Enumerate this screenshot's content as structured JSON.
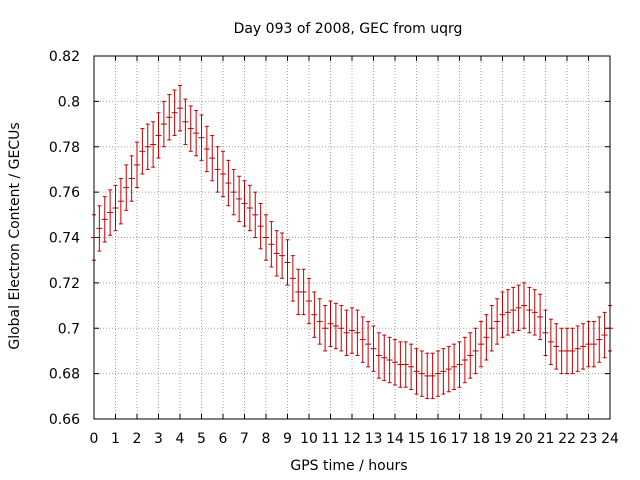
{
  "chart_data": {
    "type": "scatter",
    "title": "Day 093 of 2008, GEC from uqrg",
    "xlabel": "GPS time / hours",
    "ylabel": "Global Electron Content / GECUs",
    "xlim": [
      0,
      24
    ],
    "ylim": [
      0.66,
      0.82
    ],
    "xticks": [
      0,
      1,
      2,
      3,
      4,
      5,
      6,
      7,
      8,
      9,
      10,
      11,
      12,
      13,
      14,
      15,
      16,
      17,
      18,
      19,
      20,
      21,
      22,
      23,
      24
    ],
    "xtick_labels": [
      "0",
      "1",
      "2",
      "3",
      "4",
      "5",
      "6",
      "7",
      "8",
      "9",
      "10",
      "11",
      "12",
      "13",
      "14",
      "15",
      "16",
      "17",
      "18",
      "19",
      "20",
      "21",
      "22",
      "23",
      "24"
    ],
    "yticks": [
      0.66,
      0.68,
      0.7,
      0.72,
      0.74,
      0.76,
      0.78,
      0.8,
      0.82
    ],
    "ytick_labels": [
      "0.66",
      "0.68",
      "0.7",
      "0.72",
      "0.74",
      "0.76",
      "0.78",
      "0.8",
      "0.82"
    ],
    "grid": true,
    "errorbar": 0.01,
    "series": [
      {
        "name": "GEC",
        "color": "#c00000",
        "x": [
          0,
          0.25,
          0.5,
          0.75,
          1,
          1.25,
          1.5,
          1.75,
          2,
          2.25,
          2.5,
          2.75,
          3,
          3.25,
          3.5,
          3.75,
          4,
          4.25,
          4.5,
          4.75,
          5,
          5.25,
          5.5,
          5.75,
          6,
          6.25,
          6.5,
          6.75,
          7,
          7.25,
          7.5,
          7.75,
          8,
          8.25,
          8.5,
          8.75,
          9,
          9.25,
          9.5,
          9.75,
          10,
          10.25,
          10.5,
          10.75,
          11,
          11.25,
          11.5,
          11.75,
          12,
          12.25,
          12.5,
          12.75,
          13,
          13.25,
          13.5,
          13.75,
          14,
          14.25,
          14.5,
          14.75,
          15,
          15.25,
          15.5,
          15.75,
          16,
          16.25,
          16.5,
          16.75,
          17,
          17.25,
          17.5,
          17.75,
          18,
          18.25,
          18.5,
          18.75,
          19,
          19.25,
          19.5,
          19.75,
          20,
          20.25,
          20.5,
          20.75,
          21,
          21.25,
          21.5,
          21.75,
          22,
          22.25,
          22.5,
          22.75,
          23,
          23.25,
          23.5,
          23.75,
          24
        ],
        "y": [
          0.74,
          0.744,
          0.748,
          0.751,
          0.753,
          0.756,
          0.762,
          0.766,
          0.772,
          0.778,
          0.78,
          0.781,
          0.785,
          0.79,
          0.793,
          0.795,
          0.797,
          0.791,
          0.788,
          0.786,
          0.784,
          0.779,
          0.775,
          0.77,
          0.768,
          0.764,
          0.76,
          0.757,
          0.755,
          0.753,
          0.75,
          0.745,
          0.74,
          0.737,
          0.733,
          0.732,
          0.729,
          0.722,
          0.716,
          0.716,
          0.712,
          0.706,
          0.703,
          0.7,
          0.702,
          0.701,
          0.7,
          0.698,
          0.699,
          0.698,
          0.695,
          0.693,
          0.691,
          0.688,
          0.687,
          0.686,
          0.685,
          0.684,
          0.684,
          0.683,
          0.681,
          0.68,
          0.679,
          0.679,
          0.68,
          0.681,
          0.682,
          0.683,
          0.684,
          0.686,
          0.688,
          0.69,
          0.693,
          0.696,
          0.7,
          0.703,
          0.706,
          0.707,
          0.708,
          0.709,
          0.71,
          0.708,
          0.707,
          0.705,
          0.698,
          0.694,
          0.692,
          0.69,
          0.69,
          0.69,
          0.691,
          0.692,
          0.693,
          0.693,
          0.695,
          0.697,
          0.7
        ]
      }
    ]
  }
}
